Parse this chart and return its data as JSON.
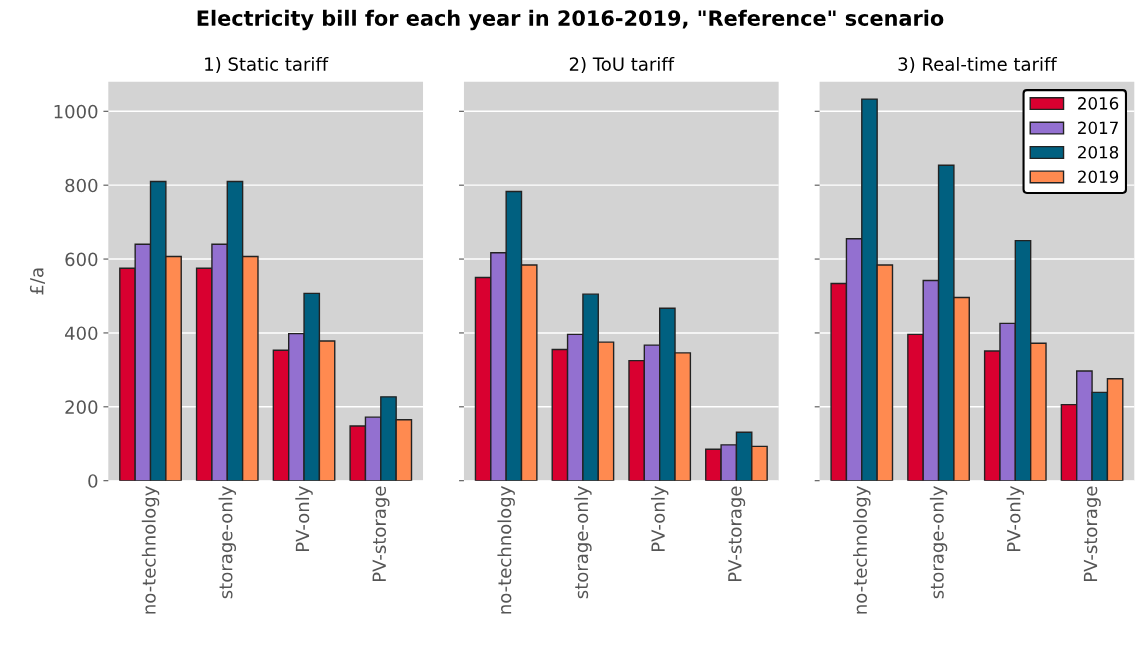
{
  "chart_data": [
    {
      "type": "bar",
      "title": "1) Static tariff",
      "ylabel": "£/a",
      "categories": [
        "no-technology",
        "storage-only",
        "PV-only",
        "PV-storage"
      ],
      "ylim": [
        0,
        1080
      ],
      "yticks": [
        0,
        200,
        400,
        600,
        800,
        1000
      ],
      "grid": "y",
      "series": [
        {
          "color": "#d90030",
          "values": [
            575,
            575,
            353,
            148
          ]
        },
        {
          "color": "#9370d0",
          "values": [
            640,
            640,
            398,
            172
          ]
        },
        {
          "color": "#006080",
          "values": [
            810,
            810,
            507,
            227
          ]
        },
        {
          "color": "#ff8a50",
          "values": [
            607,
            607,
            378,
            165
          ]
        }
      ]
    },
    {
      "type": "bar",
      "title": "2) ToU tariff",
      "categories": [
        "no-technology",
        "storage-only",
        "PV-only",
        "PV-storage"
      ],
      "ylim": [
        0,
        1080
      ],
      "yticks": [
        {
          "value": 0,
          "label": null
        },
        {
          "value": 200,
          "label": null
        },
        {
          "value": 400,
          "label": null
        },
        {
          "value": 600,
          "label": null
        },
        {
          "value": 800,
          "label": null
        },
        {
          "value": 1000,
          "label": null
        }
      ],
      "tick_labels": "x",
      "grid": "y",
      "series": [
        {
          "color": "#d90030",
          "values": [
            550,
            355,
            325,
            85
          ]
        },
        {
          "color": "#9370d0",
          "values": [
            617,
            396,
            367,
            97
          ]
        },
        {
          "color": "#006080",
          "values": [
            783,
            505,
            467,
            131
          ]
        },
        {
          "color": "#ff8a50",
          "values": [
            584,
            375,
            346,
            93
          ]
        }
      ]
    },
    {
      "type": "bar",
      "title": "3) Real-time tariff",
      "categories": [
        "no-technology",
        "storage-only",
        "PV-only",
        "PV-storage"
      ],
      "ylim": [
        0,
        1080
      ],
      "yticks": [
        {
          "value": 0,
          "label": null
        },
        {
          "value": 200,
          "label": null
        },
        {
          "value": 400,
          "label": null
        },
        {
          "value": 600,
          "label": null
        },
        {
          "value": 800,
          "label": null
        },
        {
          "value": 1000,
          "label": null
        }
      ],
      "tick_labels": "x",
      "grid": "y",
      "legend": "top right",
      "series": [
        {
          "name": "2016",
          "color": "#d90030",
          "values": [
            534,
            396,
            351,
            206
          ]
        },
        {
          "name": "2017",
          "color": "#9370d0",
          "values": [
            655,
            542,
            426,
            297
          ]
        },
        {
          "name": "2018",
          "color": "#006080",
          "values": [
            1033,
            854,
            650,
            239
          ]
        },
        {
          "name": "2019",
          "color": "#ff8a50",
          "values": [
            584,
            496,
            372,
            276
          ]
        }
      ]
    },
    {
      "type": "other",
      "title": "Electricity bill for each year in 2016-2019, \"Reference\" scenario"
    }
  ]
}
